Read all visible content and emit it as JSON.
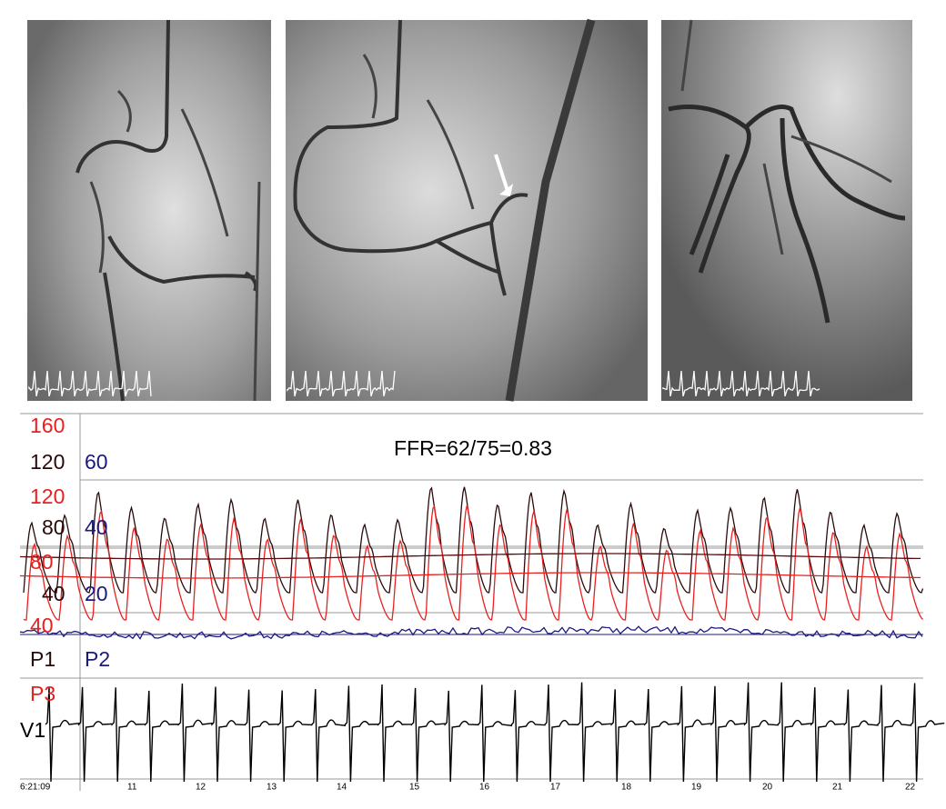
{
  "tracing": {
    "annotation": "FFR=62/75=0.83",
    "p3_scale": [
      "160",
      "120",
      "80",
      "40"
    ],
    "p1_scale": [
      "120",
      "80",
      "40"
    ],
    "p2_scale": [
      "60",
      "40",
      "20"
    ],
    "channels": [
      "P1",
      "P2",
      "P3",
      "V1"
    ],
    "time_labels": [
      "6:21:09",
      "11",
      "12",
      "13",
      "14",
      "15",
      "16",
      "17",
      "18",
      "19",
      "20",
      "21",
      "22"
    ]
  }
}
